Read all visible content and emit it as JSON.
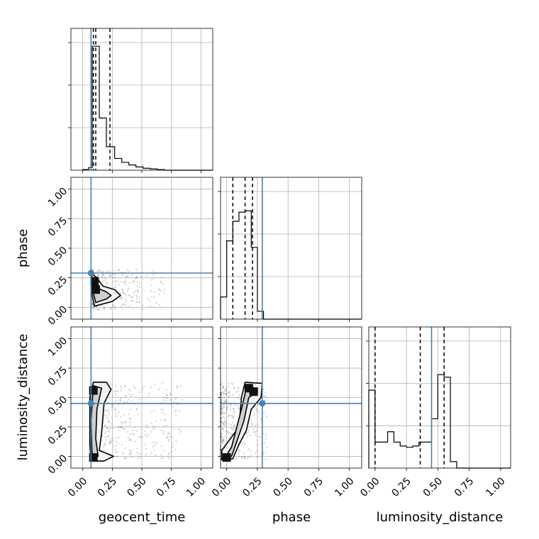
{
  "chart_data": {
    "type": "corner",
    "parameters": [
      "geocent_time",
      "phase",
      "luminosity_distance"
    ],
    "truths": {
      "geocent_time": 0.07,
      "phase": 0.29,
      "luminosity_distance": 0.45
    },
    "tick_values": [
      0.0,
      0.25,
      0.5,
      0.75,
      1.0
    ],
    "tick_labels": [
      "0.00",
      "0.25",
      "0.50",
      "0.75",
      "1.00"
    ],
    "grid": true,
    "colors": {
      "truth": "#4682b4",
      "hist": "#000000",
      "grid": "#b0b0b0"
    },
    "marginals": [
      {
        "parameter": "geocent_time",
        "range": [
          -0.1,
          1.1
        ],
        "quantiles": [
          0.09,
          0.11,
          0.23
        ],
        "bin_edges": [
          0.08,
          0.14,
          0.2,
          0.27,
          0.33,
          0.39,
          0.45,
          0.51,
          0.57,
          0.63,
          0.69
        ],
        "counts": [
          0.95,
          0.4,
          0.18,
          0.09,
          0.06,
          0.04,
          0.025,
          0.015,
          0.01,
          0.005
        ],
        "left_tail": [
          [
            0.0,
            0.005
          ],
          [
            0.05,
            0.02
          ]
        ]
      },
      {
        "parameter": "phase",
        "range": [
          -0.05,
          1.1
        ],
        "quantiles": [
          0.05,
          0.15,
          0.21
        ],
        "bin_edges": [
          -0.05,
          0.0,
          0.05,
          0.1,
          0.15,
          0.2,
          0.25,
          0.3,
          0.35
        ],
        "counts": [
          0.17,
          0.6,
          0.75,
          0.82,
          0.83,
          0.55,
          0.06,
          0.0
        ]
      },
      {
        "parameter": "luminosity_distance",
        "range": [
          -0.05,
          1.08
        ],
        "quantiles": [
          0.0,
          0.36,
          0.55
        ],
        "bin_edges": [
          -0.05,
          0.0,
          0.05,
          0.1,
          0.15,
          0.2,
          0.25,
          0.3,
          0.35,
          0.4,
          0.45,
          0.5,
          0.55,
          0.6,
          0.65,
          0.7
        ],
        "counts": [
          0.6,
          0.2,
          0.2,
          0.28,
          0.2,
          0.17,
          0.16,
          0.17,
          0.2,
          0.2,
          0.38,
          0.72,
          0.7,
          0.05,
          0.0
        ]
      }
    ],
    "joint": [
      {
        "x": "geocent_time",
        "y": "phase",
        "xlim": [
          -0.1,
          1.1
        ],
        "ylim": [
          -0.1,
          1.1
        ],
        "truth_point": [
          0.07,
          0.29
        ],
        "scatter": {
          "x_range": [
            0.08,
            0.7
          ],
          "y_range": [
            -0.02,
            0.32
          ],
          "count": 260
        },
        "contours": [
          [
            [
              0.1,
              0.01
            ],
            [
              0.25,
              0.05
            ],
            [
              0.32,
              0.1
            ],
            [
              0.27,
              0.15
            ],
            [
              0.17,
              0.18
            ],
            [
              0.12,
              0.25
            ],
            [
              0.08,
              0.28
            ],
            [
              0.07,
              0.2
            ],
            [
              0.08,
              0.1
            ]
          ],
          [
            [
              0.11,
              0.04
            ],
            [
              0.2,
              0.07
            ],
            [
              0.24,
              0.1
            ],
            [
              0.2,
              0.13
            ],
            [
              0.13,
              0.16
            ],
            [
              0.1,
              0.2
            ],
            [
              0.09,
              0.12
            ]
          ]
        ],
        "dense_cells": [
          [
            0.11,
            0.15
          ],
          [
            0.1,
            0.22
          ]
        ]
      },
      {
        "x": "geocent_time",
        "y": "luminosity_distance",
        "xlim": [
          -0.1,
          1.1
        ],
        "ylim": [
          -0.1,
          1.1
        ],
        "truth_point": [
          0.07,
          0.45
        ],
        "scatter": {
          "x_range": [
            0.08,
            0.85
          ],
          "y_range": [
            -0.02,
            0.62
          ],
          "count": 420
        },
        "contours": [
          [
            [
              0.07,
              -0.04
            ],
            [
              0.18,
              -0.04
            ],
            [
              0.26,
              0.0
            ],
            [
              0.14,
              0.05
            ],
            [
              0.16,
              0.2
            ],
            [
              0.18,
              0.45
            ],
            [
              0.24,
              0.57
            ],
            [
              0.2,
              0.63
            ],
            [
              0.09,
              0.63
            ],
            [
              0.06,
              0.5
            ],
            [
              0.06,
              0.1
            ]
          ],
          [
            [
              0.08,
              -0.01
            ],
            [
              0.13,
              0.0
            ],
            [
              0.11,
              0.15
            ],
            [
              0.12,
              0.4
            ],
            [
              0.16,
              0.58
            ],
            [
              0.09,
              0.6
            ],
            [
              0.07,
              0.3
            ]
          ]
        ],
        "dense_cells": [
          [
            0.09,
            0.56
          ],
          [
            0.09,
            -0.01
          ]
        ]
      },
      {
        "x": "phase",
        "y": "luminosity_distance",
        "xlim": [
          -0.05,
          1.1
        ],
        "ylim": [
          -0.1,
          1.1
        ],
        "truth_point": [
          0.29,
          0.45
        ],
        "scatter": {
          "x_range": [
            -0.05,
            0.33
          ],
          "y_range": [
            -0.03,
            0.62
          ],
          "count": 380
        },
        "contours": [
          [
            [
              -0.04,
              -0.03
            ],
            [
              0.05,
              -0.02
            ],
            [
              0.1,
              0.1
            ],
            [
              0.16,
              0.22
            ],
            [
              0.2,
              0.4
            ],
            [
              0.28,
              0.5
            ],
            [
              0.29,
              0.62
            ],
            [
              0.15,
              0.63
            ],
            [
              0.12,
              0.5
            ],
            [
              0.1,
              0.25
            ],
            [
              0.03,
              0.15
            ],
            [
              -0.04,
              0.05
            ]
          ],
          [
            [
              -0.02,
              -0.02
            ],
            [
              0.04,
              0.0
            ],
            [
              0.08,
              0.12
            ],
            [
              0.14,
              0.3
            ],
            [
              0.18,
              0.5
            ],
            [
              0.25,
              0.55
            ],
            [
              0.2,
              0.6
            ],
            [
              0.16,
              0.58
            ],
            [
              0.12,
              0.4
            ],
            [
              0.04,
              0.08
            ]
          ]
        ],
        "dense_cells": [
          [
            0.18,
            0.58
          ],
          [
            0.22,
            0.55
          ],
          [
            0.0,
            -0.01
          ]
        ]
      }
    ]
  }
}
